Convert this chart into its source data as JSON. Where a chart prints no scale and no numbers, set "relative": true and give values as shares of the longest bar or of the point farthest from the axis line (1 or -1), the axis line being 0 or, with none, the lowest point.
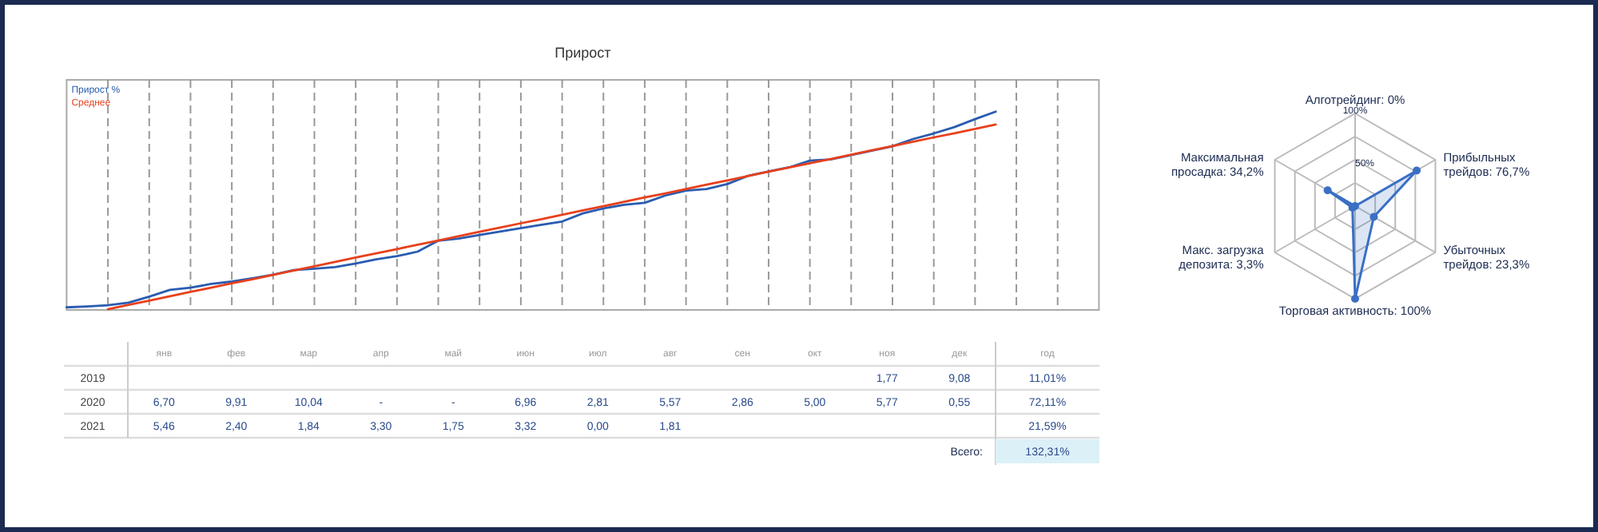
{
  "chart_data": [
    {
      "type": "line",
      "title": "Прирост",
      "relative": true,
      "grid": "x",
      "legend": "top left",
      "categories": [
        null,
        null,
        null,
        null,
        null,
        null,
        null,
        null,
        null,
        null,
        null,
        null,
        null,
        null,
        null,
        null,
        null,
        null,
        null,
        null,
        null,
        null,
        null,
        null,
        null,
        null,
        null,
        null,
        null,
        null,
        null,
        null,
        null,
        null,
        null,
        null,
        null,
        null,
        null,
        null,
        null,
        null,
        null,
        null,
        null,
        null,
        null,
        null,
        null,
        null,
        null
      ],
      "series": [
        {
          "name": "Прирост %",
          "color": "#2a5cb0",
          "values": [
            0.013,
            0.018,
            0.024,
            0.037,
            0.067,
            0.101,
            0.112,
            0.131,
            0.143,
            0.16,
            0.178,
            0.201,
            0.208,
            0.216,
            0.234,
            0.255,
            0.271,
            0.294,
            0.349,
            0.36,
            0.378,
            0.395,
            0.412,
            0.429,
            0.446,
            0.487,
            0.512,
            0.53,
            0.54,
            0.577,
            0.602,
            0.61,
            0.635,
            0.676,
            0.698,
            0.719,
            0.753,
            0.759,
            0.781,
            0.803,
            0.825,
            0.862,
            0.89,
            0.922,
            0.962,
            1,
            null,
            null,
            null,
            null,
            null
          ]
        },
        {
          "name": "Среднее",
          "color": "#e8401c",
          "values": [
            null,
            null,
            0.004,
            0.026,
            0.047,
            0.069,
            0.091,
            0.112,
            0.134,
            0.155,
            0.177,
            0.199,
            0.22,
            0.242,
            0.264,
            0.285,
            0.307,
            0.329,
            0.35,
            0.372,
            0.394,
            0.415,
            0.437,
            0.458,
            0.48,
            0.502,
            0.523,
            0.545,
            0.567,
            0.588,
            0.61,
            0.632,
            0.653,
            0.675,
            0.697,
            0.718,
            0.74,
            0.761,
            0.783,
            0.805,
            0.826,
            0.848,
            0.87,
            0.891,
            0.913,
            0.935,
            null,
            null,
            null,
            null,
            null
          ]
        }
      ]
    },
    {
      "type": "heatmap",
      "categories": [
        "янв",
        "фев",
        "мар",
        "апр",
        "май",
        "июн",
        "июл",
        "авг",
        "сен",
        "окт",
        "ноя",
        "дек",
        "год"
      ],
      "y_categories": [
        "2019",
        "2020",
        "2021"
      ],
      "cells": [
        [
          null,
          null,
          null,
          null,
          null,
          null,
          null,
          null,
          null,
          null,
          1.77,
          9.08,
          11.01
        ],
        [
          6.7,
          9.91,
          10.04,
          null,
          null,
          6.96,
          2.81,
          5.57,
          2.86,
          5.0,
          5.77,
          0.55,
          72.11
        ],
        [
          5.46,
          2.4,
          1.84,
          3.3,
          1.75,
          3.32,
          0.0,
          1.81,
          null,
          null,
          null,
          null,
          21.59
        ]
      ],
      "cell_labels": [
        [
          null,
          null,
          null,
          null,
          null,
          null,
          null,
          null,
          null,
          null,
          "1,77",
          "9,08",
          "11,01%"
        ],
        [
          "6,70",
          "9,91",
          "10,04",
          "-",
          "-",
          "6,96",
          "2,81",
          "5,57",
          "2,86",
          "5,00",
          "5,77",
          "0,55",
          "72,11%"
        ],
        [
          "5,46",
          "2,40",
          "1,84",
          "3,30",
          "1,75",
          "3,32",
          "0,00",
          "1,81",
          null,
          null,
          null,
          null,
          "21,59%"
        ]
      ],
      "annotations": [
        "Всего:",
        "132,31%"
      ]
    },
    {
      "type": "radar",
      "categories": [
        "Алготрейдинг: 0%",
        "Прибыльных трейдов: 76,7%",
        "Убыточных трейдов: 23,3%",
        "Торговая активность: 100%",
        "Макс. загрузка депозита: 3,3%",
        "Максимальная просадка: 34,2%"
      ],
      "ylim": [
        0,
        100
      ],
      "yticks": [
        {
          "value": 50,
          "label": "50%"
        },
        {
          "value": 100,
          "label": "100%"
        }
      ],
      "marker": "circle",
      "series": [
        {
          "color": "#3a6fc4",
          "values": [
            0,
            76.7,
            23.3,
            100,
            3.3,
            34.2
          ]
        }
      ]
    }
  ]
}
